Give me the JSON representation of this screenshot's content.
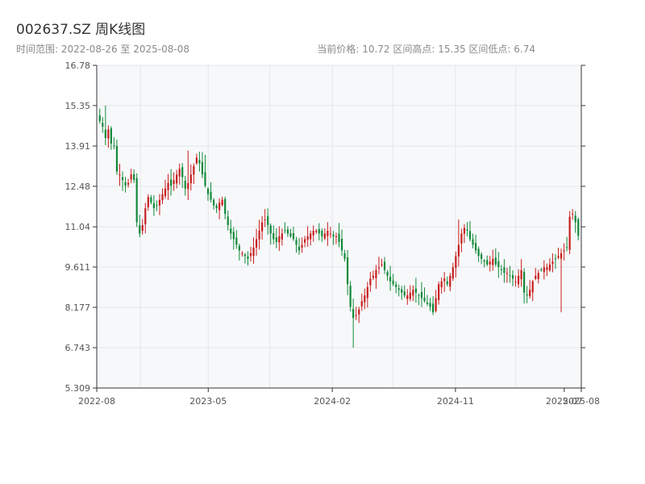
{
  "header": {
    "title": "002637.SZ 周K线图",
    "range_text": "时间范围: 2022-08-26 至 2025-08-08",
    "stats_text": "当前价格: 10.72   区间高点: 15.35   区间低点: 6.74"
  },
  "colors": {
    "up": "#c81e1e",
    "down": "#128a3a",
    "plot_bg": "#f7f8fa",
    "grid": "#e3e6ea",
    "axis": "#333333"
  },
  "chart_data": {
    "type": "candlestick",
    "title": "002637.SZ 周K线图",
    "xlabel": "",
    "ylabel": "",
    "ylim": [
      5.309,
      16.78
    ],
    "y_ticks": [
      "5.309",
      "6.743",
      "8.177",
      "9.611",
      "11.04",
      "12.48",
      "13.91",
      "15.35",
      "16.78"
    ],
    "y_tick_values": [
      5.309,
      6.743,
      8.177,
      9.611,
      11.04,
      12.48,
      13.91,
      15.35,
      16.78
    ],
    "x_ticks": [
      {
        "label": "2022-08",
        "date": "2022-08-26"
      },
      {
        "label": "2023-05",
        "date": "2023-05-01"
      },
      {
        "label": "2024-02",
        "date": "2024-02-01"
      },
      {
        "label": "2024-11",
        "date": "2024-11-01"
      },
      {
        "label": "2025-07",
        "date": "2025-07-01"
      },
      {
        "label": "2025-08",
        "date": "2025-08-08"
      }
    ],
    "x_range": [
      "2022-08-26",
      "2025-08-08"
    ],
    "grid": true,
    "legend": "none",
    "close_series": [
      14.8,
      14.6,
      14.2,
      14.5,
      14.0,
      13.9,
      13.0,
      12.9,
      12.7,
      12.5,
      12.6,
      12.9,
      12.7,
      11.2,
      10.8,
      11.1,
      11.7,
      12.1,
      11.9,
      11.7,
      11.8,
      12.0,
      12.2,
      12.4,
      12.6,
      12.5,
      12.7,
      12.9,
      13.1,
      12.8,
      12.4,
      12.6,
      12.9,
      13.2,
      13.5,
      13.3,
      12.9,
      12.5,
      12.2,
      12.0,
      11.8,
      11.7,
      11.9,
      12.0,
      11.5,
      11.1,
      10.8,
      10.6,
      10.4,
      10.2,
      10.1,
      10.0,
      9.9,
      10.1,
      10.3,
      10.6,
      10.9,
      11.2,
      11.3,
      11.1,
      10.8,
      10.6,
      10.5,
      10.7,
      10.8,
      10.9,
      10.8,
      10.7,
      10.6,
      10.4,
      10.2,
      10.4,
      10.6,
      10.7,
      10.8,
      10.9,
      10.9,
      10.8,
      10.7,
      10.8,
      10.9,
      10.8,
      10.7,
      10.7,
      10.5,
      10.2,
      9.9,
      9.0,
      8.2,
      7.8,
      7.9,
      8.1,
      8.4,
      8.6,
      8.9,
      9.2,
      9.3,
      9.5,
      9.6,
      9.7,
      9.5,
      9.3,
      9.1,
      9.0,
      8.9,
      8.8,
      8.7,
      8.6,
      8.6,
      8.7,
      8.8,
      8.7,
      8.6,
      8.5,
      8.4,
      8.3,
      8.2,
      8.0,
      8.5,
      9.0,
      9.1,
      9.2,
      9.0,
      9.3,
      9.6,
      10.0,
      10.4,
      10.8,
      11.0,
      10.9,
      10.6,
      10.4,
      10.2,
      10.0,
      9.9,
      9.8,
      9.7,
      9.8,
      9.9,
      9.7,
      9.6,
      9.5,
      9.4,
      9.4,
      9.3,
      9.2,
      9.1,
      9.3,
      9.5,
      8.7,
      8.6,
      8.8,
      9.1,
      9.3,
      9.4,
      9.5,
      9.6,
      9.6,
      9.7,
      9.8,
      9.9,
      10.0,
      10.1,
      10.2,
      10.3,
      11.4,
      11.5,
      11.2,
      10.72
    ],
    "extremes": [
      {
        "index": 2,
        "high": 15.35
      },
      {
        "index": 89,
        "low": 6.74
      },
      {
        "index": 31,
        "high": 13.75
      },
      {
        "index": 37,
        "high": 13.6
      },
      {
        "index": 126,
        "high": 11.3
      },
      {
        "index": 162,
        "low": 8.0
      },
      {
        "index": 165,
        "high": 11.6
      }
    ]
  }
}
